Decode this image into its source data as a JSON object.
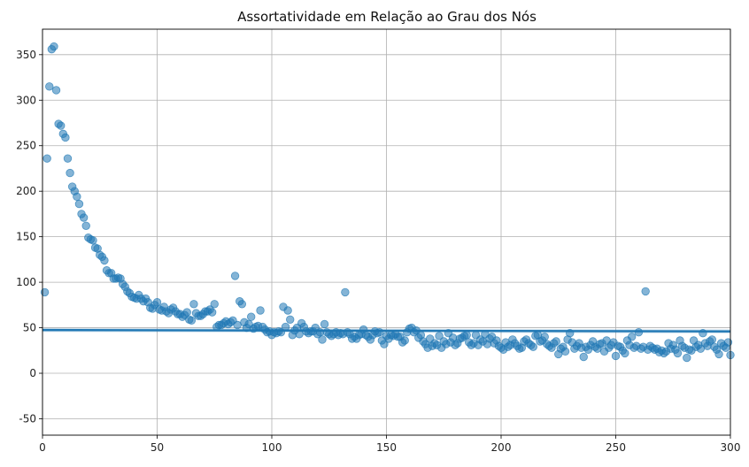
{
  "chart_data": {
    "type": "scatter",
    "title": "Assortatividade em Relação ao Grau dos Nós",
    "xlabel": "",
    "ylabel": "",
    "xlim": [
      0,
      300
    ],
    "ylim": [
      -68,
      378
    ],
    "xticks": [
      0,
      50,
      100,
      150,
      200,
      250,
      300
    ],
    "yticks": [
      -50,
      0,
      50,
      100,
      150,
      200,
      250,
      300,
      350
    ],
    "grid": true,
    "legend": false,
    "colors": {
      "points": "#1f77b4",
      "regression_line": "#1f77b4",
      "confidence_band": "#1f77b4",
      "grid": "#b0b0b0"
    },
    "regression": {
      "x": [
        0,
        300
      ],
      "y": [
        47.5,
        46.0
      ]
    },
    "points": [
      [
        1,
        89
      ],
      [
        2,
        236
      ],
      [
        3,
        315
      ],
      [
        4,
        356
      ],
      [
        5,
        359
      ],
      [
        6,
        311
      ],
      [
        7,
        274
      ],
      [
        8,
        272
      ],
      [
        9,
        263
      ],
      [
        10,
        259
      ],
      [
        11,
        236
      ],
      [
        12,
        220
      ],
      [
        13,
        205
      ],
      [
        14,
        200
      ],
      [
        15,
        194
      ],
      [
        16,
        186
      ],
      [
        17,
        175
      ],
      [
        18,
        171
      ],
      [
        19,
        162
      ],
      [
        20,
        149
      ],
      [
        21,
        147
      ],
      [
        22,
        146
      ],
      [
        23,
        138
      ],
      [
        24,
        137
      ],
      [
        25,
        130
      ],
      [
        26,
        128
      ],
      [
        27,
        124
      ],
      [
        28,
        113
      ],
      [
        29,
        110
      ],
      [
        30,
        110
      ],
      [
        31,
        104
      ],
      [
        32,
        104
      ],
      [
        33,
        105
      ],
      [
        34,
        104
      ],
      [
        35,
        98
      ],
      [
        36,
        95
      ],
      [
        37,
        90
      ],
      [
        38,
        88
      ],
      [
        39,
        84
      ],
      [
        40,
        83
      ],
      [
        41,
        82
      ],
      [
        42,
        86
      ],
      [
        43,
        82
      ],
      [
        44,
        79
      ],
      [
        45,
        82
      ],
      [
        46,
        78
      ],
      [
        47,
        72
      ],
      [
        48,
        71
      ],
      [
        49,
        75
      ],
      [
        50,
        78
      ],
      [
        51,
        70
      ],
      [
        52,
        69
      ],
      [
        53,
        73
      ],
      [
        54,
        68
      ],
      [
        55,
        66
      ],
      [
        56,
        70
      ],
      [
        57,
        72
      ],
      [
        58,
        68
      ],
      [
        59,
        65
      ],
      [
        60,
        65
      ],
      [
        61,
        62
      ],
      [
        62,
        64
      ],
      [
        63,
        67
      ],
      [
        64,
        59
      ],
      [
        65,
        58
      ],
      [
        66,
        76
      ],
      [
        67,
        66
      ],
      [
        68,
        63
      ],
      [
        69,
        63
      ],
      [
        70,
        65
      ],
      [
        71,
        68
      ],
      [
        72,
        68
      ],
      [
        73,
        70
      ],
      [
        74,
        67
      ],
      [
        75,
        76
      ],
      [
        76,
        51
      ],
      [
        77,
        53
      ],
      [
        78,
        53
      ],
      [
        79,
        55
      ],
      [
        80,
        57
      ],
      [
        81,
        54
      ],
      [
        82,
        56
      ],
      [
        83,
        58
      ],
      [
        84,
        107
      ],
      [
        85,
        53
      ],
      [
        86,
        79
      ],
      [
        87,
        76
      ],
      [
        88,
        56
      ],
      [
        89,
        50
      ],
      [
        90,
        54
      ],
      [
        91,
        62
      ],
      [
        92,
        49
      ],
      [
        93,
        51
      ],
      [
        94,
        52
      ],
      [
        95,
        69
      ],
      [
        96,
        51
      ],
      [
        97,
        48
      ],
      [
        98,
        45
      ],
      [
        99,
        46
      ],
      [
        100,
        42
      ],
      [
        101,
        45
      ],
      [
        102,
        44
      ],
      [
        103,
        46
      ],
      [
        104,
        45
      ],
      [
        105,
        73
      ],
      [
        106,
        51
      ],
      [
        107,
        69
      ],
      [
        108,
        59
      ],
      [
        109,
        42
      ],
      [
        110,
        47
      ],
      [
        111,
        50
      ],
      [
        112,
        43
      ],
      [
        113,
        55
      ],
      [
        114,
        51
      ],
      [
        115,
        46
      ],
      [
        116,
        44
      ],
      [
        117,
        46
      ],
      [
        118,
        46
      ],
      [
        119,
        50
      ],
      [
        120,
        43
      ],
      [
        121,
        45
      ],
      [
        122,
        37
      ],
      [
        123,
        54
      ],
      [
        124,
        45
      ],
      [
        125,
        43
      ],
      [
        126,
        41
      ],
      [
        127,
        43
      ],
      [
        128,
        45
      ],
      [
        129,
        42
      ],
      [
        130,
        44
      ],
      [
        131,
        43
      ],
      [
        132,
        89
      ],
      [
        133,
        45
      ],
      [
        134,
        43
      ],
      [
        135,
        38
      ],
      [
        136,
        40
      ],
      [
        137,
        38
      ],
      [
        138,
        42
      ],
      [
        139,
        43
      ],
      [
        140,
        48
      ],
      [
        141,
        42
      ],
      [
        142,
        40
      ],
      [
        143,
        37
      ],
      [
        144,
        42
      ],
      [
        145,
        46
      ],
      [
        146,
        44
      ],
      [
        147,
        45
      ],
      [
        148,
        36
      ],
      [
        149,
        32
      ],
      [
        150,
        41
      ],
      [
        151,
        38
      ],
      [
        152,
        42
      ],
      [
        153,
        41
      ],
      [
        154,
        43
      ],
      [
        155,
        40
      ],
      [
        156,
        40
      ],
      [
        157,
        34
      ],
      [
        158,
        36
      ],
      [
        159,
        45
      ],
      [
        160,
        49
      ],
      [
        161,
        50
      ],
      [
        162,
        45
      ],
      [
        163,
        47
      ],
      [
        164,
        39
      ],
      [
        165,
        42
      ],
      [
        166,
        35
      ],
      [
        167,
        32
      ],
      [
        168,
        28
      ],
      [
        169,
        38
      ],
      [
        170,
        30
      ],
      [
        171,
        33
      ],
      [
        172,
        31
      ],
      [
        173,
        41
      ],
      [
        174,
        28
      ],
      [
        175,
        35
      ],
      [
        176,
        32
      ],
      [
        177,
        44
      ],
      [
        178,
        34
      ],
      [
        179,
        39
      ],
      [
        180,
        31
      ],
      [
        181,
        33
      ],
      [
        182,
        38
      ],
      [
        183,
        39
      ],
      [
        184,
        41
      ],
      [
        185,
        42
      ],
      [
        186,
        34
      ],
      [
        187,
        31
      ],
      [
        188,
        33
      ],
      [
        189,
        42
      ],
      [
        190,
        31
      ],
      [
        191,
        37
      ],
      [
        192,
        35
      ],
      [
        193,
        43
      ],
      [
        194,
        32
      ],
      [
        195,
        38
      ],
      [
        196,
        40
      ],
      [
        197,
        33
      ],
      [
        198,
        36
      ],
      [
        199,
        30
      ],
      [
        200,
        28
      ],
      [
        201,
        26
      ],
      [
        202,
        34
      ],
      [
        203,
        29
      ],
      [
        204,
        31
      ],
      [
        205,
        37
      ],
      [
        206,
        33
      ],
      [
        207,
        30
      ],
      [
        208,
        27
      ],
      [
        209,
        28
      ],
      [
        210,
        35
      ],
      [
        211,
        37
      ],
      [
        212,
        33
      ],
      [
        213,
        31
      ],
      [
        214,
        29
      ],
      [
        215,
        41
      ],
      [
        216,
        42
      ],
      [
        217,
        35
      ],
      [
        218,
        36
      ],
      [
        219,
        40
      ],
      [
        220,
        32
      ],
      [
        221,
        30
      ],
      [
        222,
        28
      ],
      [
        223,
        33
      ],
      [
        224,
        35
      ],
      [
        225,
        21
      ],
      [
        226,
        27
      ],
      [
        227,
        29
      ],
      [
        228,
        24
      ],
      [
        229,
        37
      ],
      [
        230,
        44
      ],
      [
        231,
        34
      ],
      [
        232,
        27
      ],
      [
        233,
        30
      ],
      [
        234,
        33
      ],
      [
        235,
        28
      ],
      [
        236,
        18
      ],
      [
        237,
        29
      ],
      [
        238,
        26
      ],
      [
        239,
        31
      ],
      [
        240,
        35
      ],
      [
        241,
        29
      ],
      [
        242,
        27
      ],
      [
        243,
        32
      ],
      [
        244,
        33
      ],
      [
        245,
        24
      ],
      [
        246,
        36
      ],
      [
        247,
        28
      ],
      [
        248,
        31
      ],
      [
        249,
        34
      ],
      [
        250,
        19
      ],
      [
        251,
        30
      ],
      [
        252,
        29
      ],
      [
        253,
        25
      ],
      [
        254,
        22
      ],
      [
        255,
        36
      ],
      [
        256,
        31
      ],
      [
        257,
        40
      ],
      [
        258,
        28
      ],
      [
        259,
        30
      ],
      [
        260,
        45
      ],
      [
        261,
        27
      ],
      [
        262,
        29
      ],
      [
        263,
        90
      ],
      [
        264,
        26
      ],
      [
        265,
        30
      ],
      [
        266,
        28
      ],
      [
        267,
        26
      ],
      [
        268,
        27
      ],
      [
        269,
        23
      ],
      [
        270,
        25
      ],
      [
        271,
        22
      ],
      [
        272,
        24
      ],
      [
        273,
        33
      ],
      [
        274,
        27
      ],
      [
        275,
        31
      ],
      [
        276,
        26
      ],
      [
        277,
        22
      ],
      [
        278,
        36
      ],
      [
        279,
        30
      ],
      [
        280,
        28
      ],
      [
        281,
        17
      ],
      [
        282,
        26
      ],
      [
        283,
        25
      ],
      [
        284,
        36
      ],
      [
        285,
        29
      ],
      [
        286,
        31
      ],
      [
        287,
        27
      ],
      [
        288,
        44
      ],
      [
        289,
        33
      ],
      [
        290,
        30
      ],
      [
        291,
        35
      ],
      [
        292,
        37
      ],
      [
        293,
        29
      ],
      [
        294,
        26
      ],
      [
        295,
        21
      ],
      [
        296,
        33
      ],
      [
        297,
        30
      ],
      [
        298,
        28
      ],
      [
        299,
        34
      ],
      [
        300,
        20
      ]
    ]
  }
}
